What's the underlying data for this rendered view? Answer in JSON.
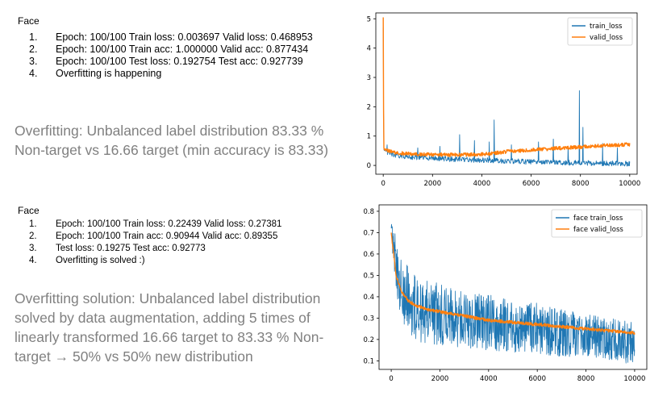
{
  "section1": {
    "heading": "Face",
    "items": [
      {
        "num": "1.",
        "text": "Epoch: 100/100 Train loss: 0.003697 Valid loss: 0.468953"
      },
      {
        "num": "2.",
        "text": "Epoch: 100/100 Train acc: 1.000000 Valid acc: 0.877434"
      },
      {
        "num": "3.",
        "text": "Epoch: 100/100 Test loss: 0.192754 Test acc: 0.927739"
      },
      {
        "num": "4.",
        "text": "Overfitting is happening"
      }
    ],
    "note": "Overfitting: Unbalanced label distribution 83.33 % Non-target vs 16.66 target (min accuracy is 83.33)"
  },
  "section2": {
    "heading": "Face",
    "items": [
      {
        "num": "1.",
        "text": "Epoch: 100/100 Train loss: 0.22439 Valid loss: 0.27381"
      },
      {
        "num": "2.",
        "text": "Epoch: 100/100 Train acc: 0.90944 Valid acc: 0.89355"
      },
      {
        "num": "3.",
        "text": "Test loss: 0.19275 Test acc: 0.92773"
      },
      {
        "num": "4.",
        "text": "Overfitting is solved :)"
      }
    ],
    "note": "Overfitting solution: Unbalanced label distribution solved by data augmentation, adding 5 times of linearly transformed 16.66 target to 83.33 % Non-target → 50% vs 50% new distribution"
  },
  "chart_data": [
    {
      "type": "line",
      "title": "",
      "xlabel": "",
      "ylabel": "",
      "xlim": [
        -300,
        10300
      ],
      "ylim": [
        -0.3,
        5.2
      ],
      "xticks": [
        "0",
        "2000",
        "4000",
        "6000",
        "8000",
        "10000"
      ],
      "yticks": [
        "0",
        "1",
        "2",
        "3",
        "4",
        "5"
      ],
      "legend_position": "top-right",
      "series": [
        {
          "name": "train_loss",
          "color": "#1f77b4",
          "x": [
            0,
            20,
            100,
            500,
            1000,
            2000,
            3000,
            4000,
            5000,
            6000,
            7000,
            8000,
            9000,
            10000
          ],
          "y": [
            4.7,
            0.55,
            0.45,
            0.35,
            0.3,
            0.25,
            0.2,
            0.18,
            0.15,
            0.12,
            0.1,
            0.08,
            0.07,
            0.06
          ],
          "spikes": [
            [
              150,
              0.7
            ],
            [
              1400,
              0.6
            ],
            [
              2300,
              0.65
            ],
            [
              3100,
              1.05
            ],
            [
              3700,
              0.85
            ],
            [
              4300,
              0.8
            ],
            [
              4500,
              1.55
            ],
            [
              5200,
              0.7
            ],
            [
              6300,
              0.8
            ],
            [
              6900,
              0.9
            ],
            [
              7500,
              0.6
            ],
            [
              7950,
              2.55
            ],
            [
              8100,
              1.3
            ],
            [
              8900,
              0.75
            ],
            [
              9500,
              0.6
            ]
          ]
        },
        {
          "name": "valid_loss",
          "color": "#ff7f0e",
          "x": [
            0,
            20,
            200,
            500,
            1000,
            1500,
            2000,
            2500,
            3000,
            3500,
            4000,
            4500,
            5000,
            5500,
            6000,
            6500,
            7000,
            7500,
            8000,
            8500,
            9000,
            9500,
            10000
          ],
          "y": [
            5.05,
            0.6,
            0.5,
            0.43,
            0.4,
            0.38,
            0.37,
            0.36,
            0.36,
            0.37,
            0.38,
            0.42,
            0.47,
            0.5,
            0.53,
            0.55,
            0.58,
            0.6,
            0.63,
            0.65,
            0.68,
            0.7,
            0.72
          ]
        }
      ]
    },
    {
      "type": "line",
      "title": "",
      "xlabel": "",
      "ylabel": "",
      "xlim": [
        -500,
        10500
      ],
      "ylim": [
        0.06,
        0.83
      ],
      "xticks": [
        "0",
        "2000",
        "4000",
        "6000",
        "8000",
        "10000"
      ],
      "yticks": [
        "0.1",
        "0.2",
        "0.3",
        "0.4",
        "0.5",
        "0.6",
        "0.7",
        "0.8"
      ],
      "legend_position": "top-right",
      "series": [
        {
          "name": "face train_loss",
          "color": "#1f77b4",
          "x": [
            0,
            100,
            200,
            400,
            700,
            1000,
            1500,
            2000,
            3000,
            4000,
            5000,
            6000,
            7000,
            8000,
            9000,
            10000
          ],
          "y": [
            0.72,
            0.65,
            0.55,
            0.45,
            0.38,
            0.35,
            0.33,
            0.31,
            0.29,
            0.28,
            0.26,
            0.25,
            0.23,
            0.22,
            0.2,
            0.18
          ],
          "band": [
            0.1,
            0.08,
            0.14,
            0.16,
            0.16,
            0.16,
            0.15,
            0.15,
            0.13,
            0.13,
            0.12,
            0.12,
            0.11,
            0.1,
            0.1,
            0.1
          ]
        },
        {
          "name": "face valid_loss",
          "color": "#ff7f0e",
          "x": [
            0,
            100,
            200,
            400,
            700,
            1000,
            1500,
            2000,
            3000,
            4000,
            5000,
            6000,
            7000,
            8000,
            9000,
            10000
          ],
          "y": [
            0.7,
            0.6,
            0.5,
            0.43,
            0.38,
            0.36,
            0.34,
            0.33,
            0.31,
            0.29,
            0.28,
            0.27,
            0.26,
            0.25,
            0.24,
            0.23
          ]
        }
      ]
    }
  ]
}
